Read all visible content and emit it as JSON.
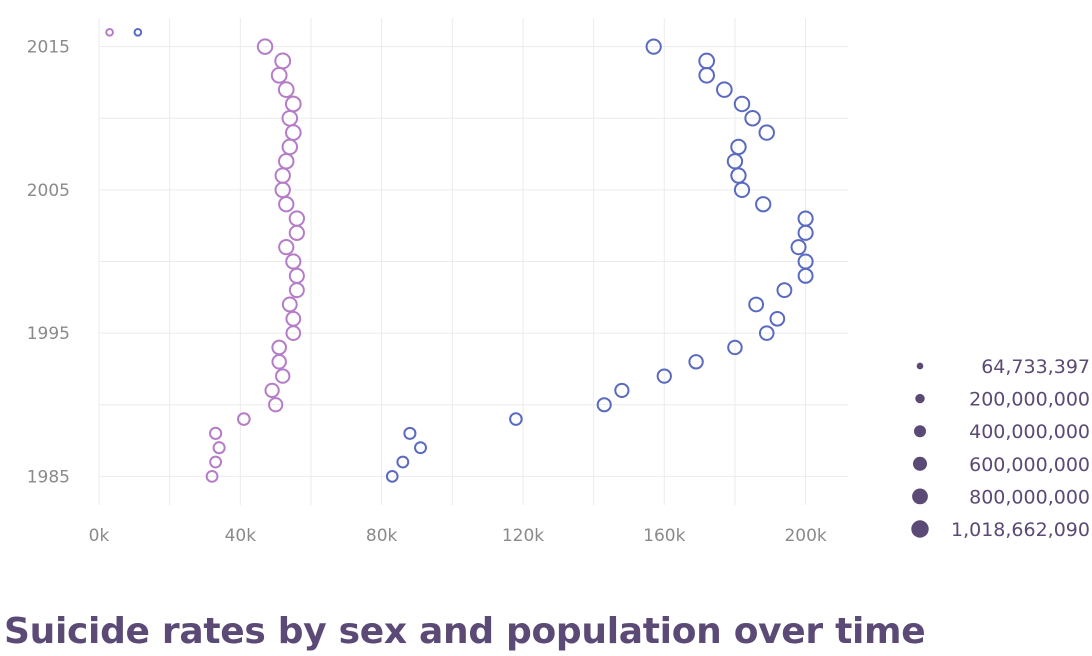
{
  "chart_data": {
    "type": "scatter",
    "title": "Suicide rates by sex and population over time",
    "xlabel": "",
    "ylabel": "",
    "xlim": [
      0,
      212000
    ],
    "ylim": [
      1983,
      2017
    ],
    "x_ticks": [
      {
        "value": 0,
        "label": "0k"
      },
      {
        "value": 40000,
        "label": "40k"
      },
      {
        "value": 80000,
        "label": "80k"
      },
      {
        "value": 120000,
        "label": "120k"
      },
      {
        "value": 160000,
        "label": "160k"
      },
      {
        "value": 200000,
        "label": "200k"
      }
    ],
    "y_ticks": [
      {
        "value": 1985,
        "label": "1985"
      },
      {
        "value": 1995,
        "label": "1995"
      },
      {
        "value": 2005,
        "label": "2005"
      },
      {
        "value": 2015,
        "label": "2015"
      }
    ],
    "grid": true,
    "size_legend": {
      "placement": "right",
      "entries": [
        {
          "value": 64733397,
          "label": "64,733,397"
        },
        {
          "value": 200000000,
          "label": "200,000,000"
        },
        {
          "value": 400000000,
          "label": "400,000,000"
        },
        {
          "value": 600000000,
          "label": "600,000,000"
        },
        {
          "value": 800000000,
          "label": "800,000,000"
        },
        {
          "value": 1018662090,
          "label": "1,018,662,090"
        }
      ]
    },
    "series": [
      {
        "color": "#b57cc7",
        "points": [
          {
            "year": 1985,
            "x": 32000,
            "pop": 300000000
          },
          {
            "year": 1986,
            "x": 33000,
            "pop": 300000000
          },
          {
            "year": 1987,
            "x": 34000,
            "pop": 320000000
          },
          {
            "year": 1988,
            "x": 33000,
            "pop": 330000000
          },
          {
            "year": 1989,
            "x": 41000,
            "pop": 370000000
          },
          {
            "year": 1990,
            "x": 50000,
            "pop": 520000000
          },
          {
            "year": 1991,
            "x": 49000,
            "pop": 520000000
          },
          {
            "year": 1992,
            "x": 52000,
            "pop": 530000000
          },
          {
            "year": 1993,
            "x": 51000,
            "pop": 540000000
          },
          {
            "year": 1994,
            "x": 51000,
            "pop": 550000000
          },
          {
            "year": 1995,
            "x": 55000,
            "pop": 560000000
          },
          {
            "year": 1996,
            "x": 55000,
            "pop": 570000000
          },
          {
            "year": 1997,
            "x": 54000,
            "pop": 580000000
          },
          {
            "year": 1998,
            "x": 56000,
            "pop": 590000000
          },
          {
            "year": 1999,
            "x": 56000,
            "pop": 600000000
          },
          {
            "year": 2000,
            "x": 55000,
            "pop": 610000000
          },
          {
            "year": 2001,
            "x": 53000,
            "pop": 620000000
          },
          {
            "year": 2002,
            "x": 56000,
            "pop": 620000000
          },
          {
            "year": 2003,
            "x": 56000,
            "pop": 630000000
          },
          {
            "year": 2004,
            "x": 53000,
            "pop": 630000000
          },
          {
            "year": 2005,
            "x": 52000,
            "pop": 640000000
          },
          {
            "year": 2006,
            "x": 52000,
            "pop": 640000000
          },
          {
            "year": 2007,
            "x": 53000,
            "pop": 650000000
          },
          {
            "year": 2008,
            "x": 54000,
            "pop": 650000000
          },
          {
            "year": 2009,
            "x": 55000,
            "pop": 660000000
          },
          {
            "year": 2010,
            "x": 54000,
            "pop": 660000000
          },
          {
            "year": 2011,
            "x": 55000,
            "pop": 670000000
          },
          {
            "year": 2012,
            "x": 53000,
            "pop": 670000000
          },
          {
            "year": 2013,
            "x": 51000,
            "pop": 680000000
          },
          {
            "year": 2014,
            "x": 52000,
            "pop": 690000000
          },
          {
            "year": 2015,
            "x": 47000,
            "pop": 640000000
          },
          {
            "year": 2016,
            "x": 3000,
            "pop": 64733397
          }
        ]
      },
      {
        "color": "#5a6ac0",
        "points": [
          {
            "year": 1985,
            "x": 83000,
            "pop": 290000000
          },
          {
            "year": 1986,
            "x": 86000,
            "pop": 300000000
          },
          {
            "year": 1987,
            "x": 91000,
            "pop": 310000000
          },
          {
            "year": 1988,
            "x": 88000,
            "pop": 320000000
          },
          {
            "year": 1989,
            "x": 118000,
            "pop": 360000000
          },
          {
            "year": 1990,
            "x": 143000,
            "pop": 500000000
          },
          {
            "year": 1991,
            "x": 148000,
            "pop": 510000000
          },
          {
            "year": 1992,
            "x": 160000,
            "pop": 520000000
          },
          {
            "year": 1993,
            "x": 169000,
            "pop": 530000000
          },
          {
            "year": 1994,
            "x": 180000,
            "pop": 540000000
          },
          {
            "year": 1995,
            "x": 189000,
            "pop": 550000000
          },
          {
            "year": 1996,
            "x": 192000,
            "pop": 560000000
          },
          {
            "year": 1997,
            "x": 186000,
            "pop": 570000000
          },
          {
            "year": 1998,
            "x": 194000,
            "pop": 580000000
          },
          {
            "year": 1999,
            "x": 200000,
            "pop": 590000000
          },
          {
            "year": 2000,
            "x": 200000,
            "pop": 600000000
          },
          {
            "year": 2001,
            "x": 198000,
            "pop": 600000000
          },
          {
            "year": 2002,
            "x": 200000,
            "pop": 610000000
          },
          {
            "year": 2003,
            "x": 200000,
            "pop": 610000000
          },
          {
            "year": 2004,
            "x": 188000,
            "pop": 620000000
          },
          {
            "year": 2005,
            "x": 182000,
            "pop": 620000000
          },
          {
            "year": 2006,
            "x": 181000,
            "pop": 630000000
          },
          {
            "year": 2007,
            "x": 180000,
            "pop": 630000000
          },
          {
            "year": 2008,
            "x": 181000,
            "pop": 640000000
          },
          {
            "year": 2009,
            "x": 189000,
            "pop": 640000000
          },
          {
            "year": 2010,
            "x": 185000,
            "pop": 650000000
          },
          {
            "year": 2011,
            "x": 182000,
            "pop": 650000000
          },
          {
            "year": 2012,
            "x": 177000,
            "pop": 660000000
          },
          {
            "year": 2013,
            "x": 172000,
            "pop": 660000000
          },
          {
            "year": 2014,
            "x": 172000,
            "pop": 670000000
          },
          {
            "year": 2015,
            "x": 157000,
            "pop": 620000000
          },
          {
            "year": 2016,
            "x": 11000,
            "pop": 64733397
          }
        ]
      }
    ]
  }
}
